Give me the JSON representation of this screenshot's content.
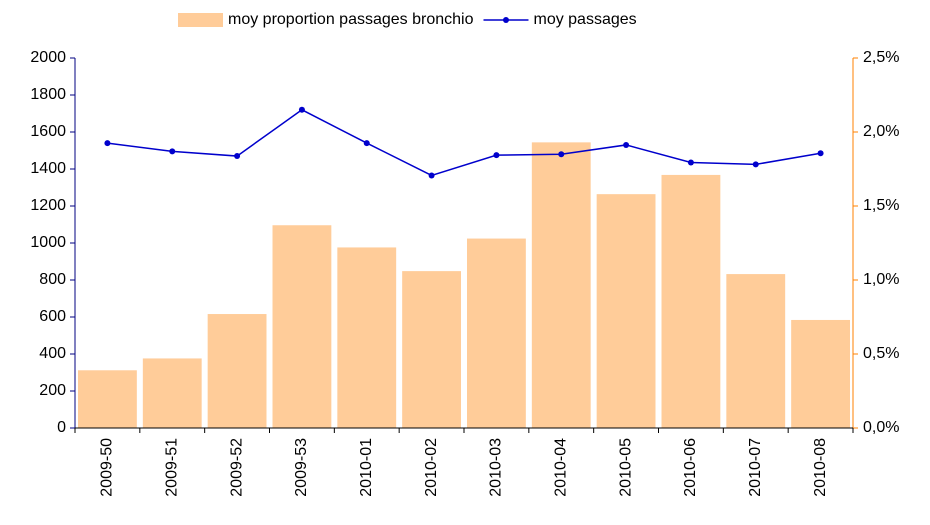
{
  "chart_data": {
    "type": "bar-line",
    "categories": [
      "2009-50",
      "2009-51",
      "2009-52",
      "2009-53",
      "2010-01",
      "2010-02",
      "2010-03",
      "2010-04",
      "2010-05",
      "2010-06",
      "2010-07",
      "2010-08"
    ],
    "series": [
      {
        "name": "moy proportion passages bronchio",
        "type": "bar",
        "axis": "y2",
        "color": "#FFCC99",
        "values": [
          0.39,
          0.47,
          0.77,
          1.37,
          1.22,
          1.06,
          1.28,
          1.93,
          1.58,
          1.71,
          1.04,
          0.73
        ]
      },
      {
        "name": "moy passages",
        "type": "line",
        "axis": "y",
        "color": "#0000CC",
        "values": [
          1540,
          1495,
          1470,
          1720,
          1540,
          1365,
          1475,
          1480,
          1530,
          1435,
          1425,
          1485
        ]
      }
    ],
    "ylim": [
      0,
      2000
    ],
    "yticks": [
      0,
      200,
      400,
      600,
      800,
      1000,
      1200,
      1400,
      1600,
      1800,
      2000
    ],
    "y2lim": [
      0,
      2.5
    ],
    "y2ticks": [
      {
        "value": 0,
        "label": "0,0%"
      },
      {
        "value": 0.5,
        "label": "0,5%"
      },
      {
        "value": 1,
        "label": "1,0%"
      },
      {
        "value": 1.5,
        "label": "1,5%"
      },
      {
        "value": 2,
        "label": "2,0%"
      },
      {
        "value": 2.5,
        "label": "2,5%"
      }
    ],
    "legend": "top"
  }
}
